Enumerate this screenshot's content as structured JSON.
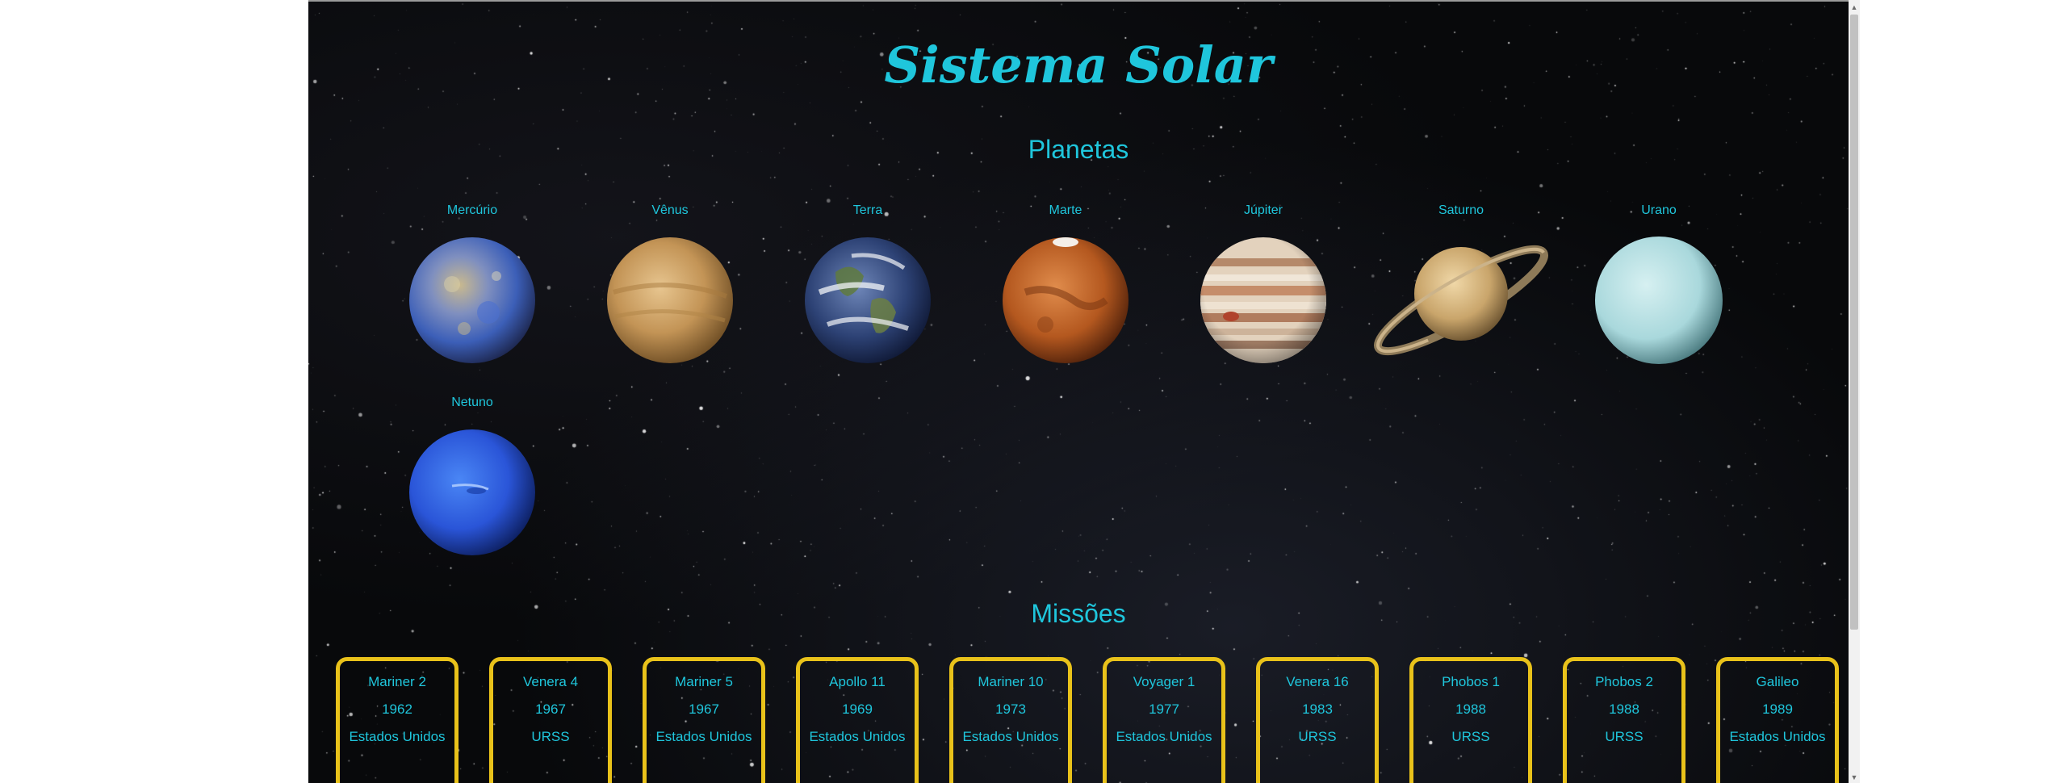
{
  "site": {
    "title": "Sistema Solar"
  },
  "planets_section": {
    "heading": "Planetas",
    "planets": [
      {
        "name": "Mercúrio",
        "icon": "mercury-image",
        "color": "#6f86b8"
      },
      {
        "name": "Vênus",
        "icon": "venus-image",
        "color": "#c79a5a"
      },
      {
        "name": "Terra",
        "icon": "earth-image",
        "color": "#3c5a8a"
      },
      {
        "name": "Marte",
        "icon": "mars-image",
        "color": "#c6692b"
      },
      {
        "name": "Júpiter",
        "icon": "jupiter-image",
        "color": "#d9c2a6"
      },
      {
        "name": "Saturno",
        "icon": "saturn-image",
        "color": "#d8b680"
      },
      {
        "name": "Urano",
        "icon": "uranus-image",
        "color": "#bfe6e8"
      },
      {
        "name": "Netuno",
        "icon": "neptune-image",
        "color": "#2f5fe0"
      }
    ]
  },
  "missions_section": {
    "heading": "Missões",
    "missions": [
      {
        "name": "Mariner 2",
        "year": "1962",
        "country": "Estados Unidos"
      },
      {
        "name": "Venera 4",
        "year": "1967",
        "country": "URSS"
      },
      {
        "name": "Mariner 5",
        "year": "1967",
        "country": "Estados Unidos"
      },
      {
        "name": "Apollo 11",
        "year": "1969",
        "country": "Estados Unidos"
      },
      {
        "name": "Mariner 10",
        "year": "1973",
        "country": "Estados Unidos"
      },
      {
        "name": "Voyager 1",
        "year": "1977",
        "country": "Estados Unidos"
      },
      {
        "name": "Venera 16",
        "year": "1983",
        "country": "URSS"
      },
      {
        "name": "Phobos 1",
        "year": "1988",
        "country": "URSS"
      },
      {
        "name": "Phobos 2",
        "year": "1988",
        "country": "URSS"
      },
      {
        "name": "Galileo",
        "year": "1989",
        "country": "Estados Unidos"
      }
    ]
  },
  "colors": {
    "accent_text": "#1fc6dc",
    "card_border": "#e9c21a",
    "background": "#08090b"
  }
}
